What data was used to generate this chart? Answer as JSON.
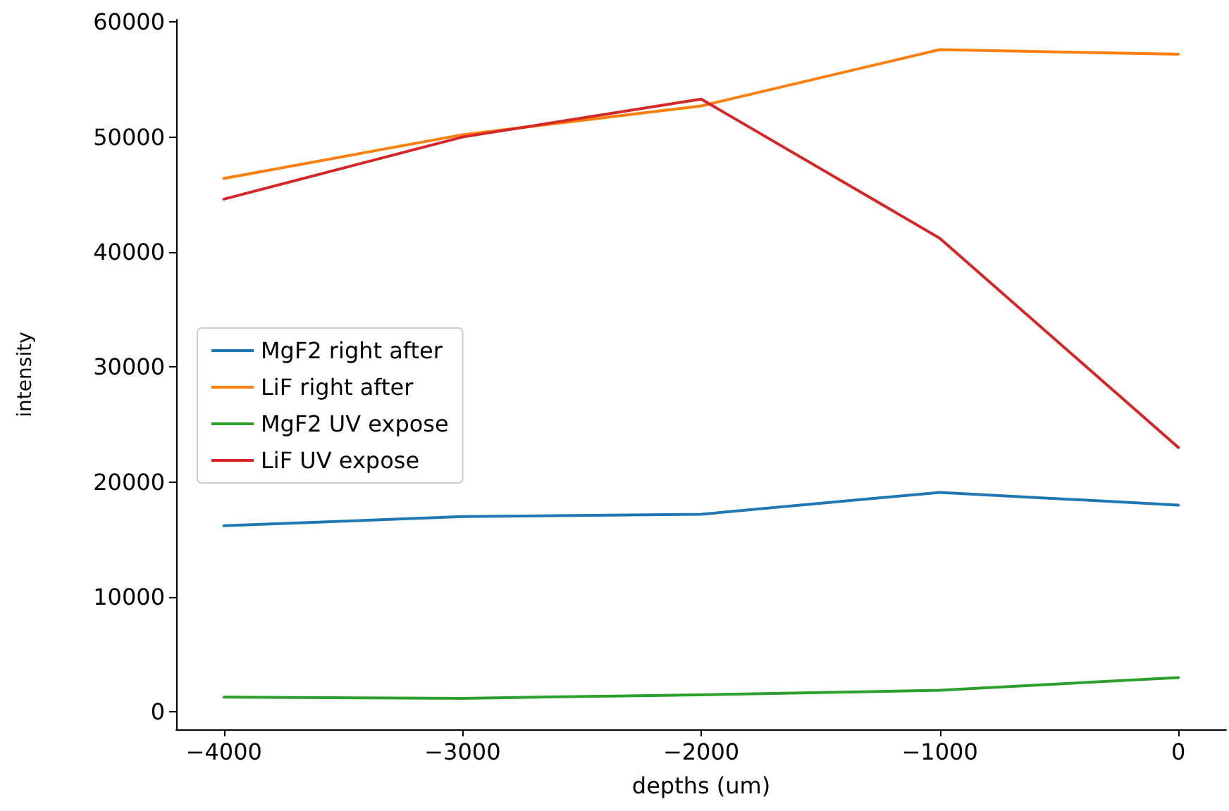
{
  "chart_data": {
    "type": "line",
    "xlabel": "depths (um)",
    "ylabel": "intensity",
    "x": [
      -4000,
      -3000,
      -2000,
      -1000,
      0
    ],
    "series": [
      {
        "name": "MgF2 right after",
        "color": "#1f77b4",
        "values": [
          16200,
          17000,
          17200,
          19100,
          18000
        ]
      },
      {
        "name": "LiF right after",
        "color": "#ff7f0e",
        "values": [
          46400,
          50200,
          52700,
          57600,
          57200
        ]
      },
      {
        "name": "MgF2 UV expose",
        "color": "#2ca02c",
        "values": [
          1300,
          1200,
          1500,
          1900,
          3000
        ]
      },
      {
        "name": "LiF UV expose",
        "color": "#d62728",
        "values": [
          44600,
          50000,
          53300,
          41200,
          23000
        ]
      }
    ],
    "xlim": [
      -4200,
      200
    ],
    "xticks": [
      -4000,
      -3000,
      -2000,
      -1000,
      0
    ],
    "ylim": [
      -1500,
      60200
    ],
    "yticks": [
      0,
      10000,
      20000,
      30000,
      40000,
      50000,
      60000
    ],
    "legend": "left",
    "grid": false,
    "marker": "none",
    "line_style": "solid"
  }
}
